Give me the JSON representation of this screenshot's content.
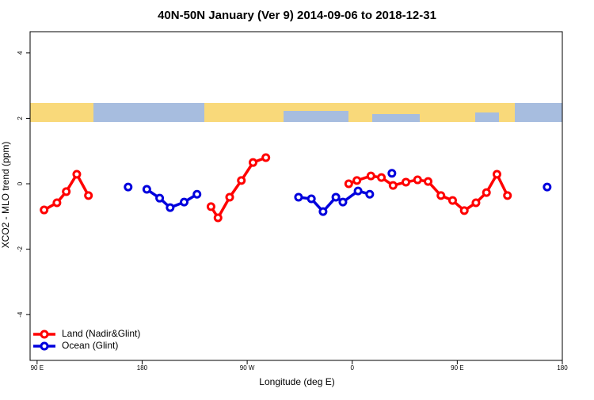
{
  "chart_data": {
    "type": "line",
    "title": "40N-50N January (Ver 9)   2014-09-06 to 2018-12-31",
    "xlabel": "Longitude (deg E)",
    "ylabel": "XCO2 - MLO trend (ppm)",
    "xlim": [
      84,
      540
    ],
    "ylim": [
      -5.4,
      4.65
    ],
    "xticks": [
      {
        "value": 90,
        "label": "90 E"
      },
      {
        "value": 180,
        "label": "180"
      },
      {
        "value": 270,
        "label": "90 W"
      },
      {
        "value": 360,
        "label": "0"
      },
      {
        "value": 450,
        "label": "90 E"
      },
      {
        "value": 540,
        "label": "180"
      }
    ],
    "yticks": [
      4,
      2,
      0,
      -2,
      -4
    ],
    "legend": "bottom-left",
    "series": [
      {
        "name": "Land (Nadir&Glint)",
        "color": "#ff0000",
        "x": [
          96,
          107,
          115,
          124,
          134,
          null,
          239,
          245,
          255,
          265,
          275,
          286,
          null,
          357,
          364,
          376,
          385,
          395,
          406,
          416,
          425,
          436,
          446,
          456,
          466,
          475,
          484,
          493
        ],
        "values": [
          -0.8,
          -0.58,
          -0.24,
          0.29,
          -0.36,
          null,
          -0.7,
          -1.04,
          -0.41,
          0.1,
          0.65,
          0.8,
          null,
          0,
          0.1,
          0.24,
          0.19,
          -0.05,
          0.05,
          0.12,
          0.07,
          -0.36,
          -0.51,
          -0.82,
          -0.58,
          -0.27,
          0.29,
          -0.36
        ]
      },
      {
        "name": "Ocean (Glint)",
        "color": "#0000dd",
        "x": [
          168,
          null,
          184,
          195,
          204,
          216,
          227,
          null,
          314,
          325,
          335,
          346,
          352,
          365,
          375,
          null,
          394,
          null,
          527
        ],
        "values": [
          -0.1,
          null,
          -0.17,
          -0.44,
          -0.73,
          -0.56,
          -0.32,
          null,
          -0.41,
          -0.46,
          -0.85,
          -0.41,
          -0.56,
          -0.22,
          -0.32,
          null,
          0.32,
          null,
          -0.1
        ]
      }
    ]
  }
}
